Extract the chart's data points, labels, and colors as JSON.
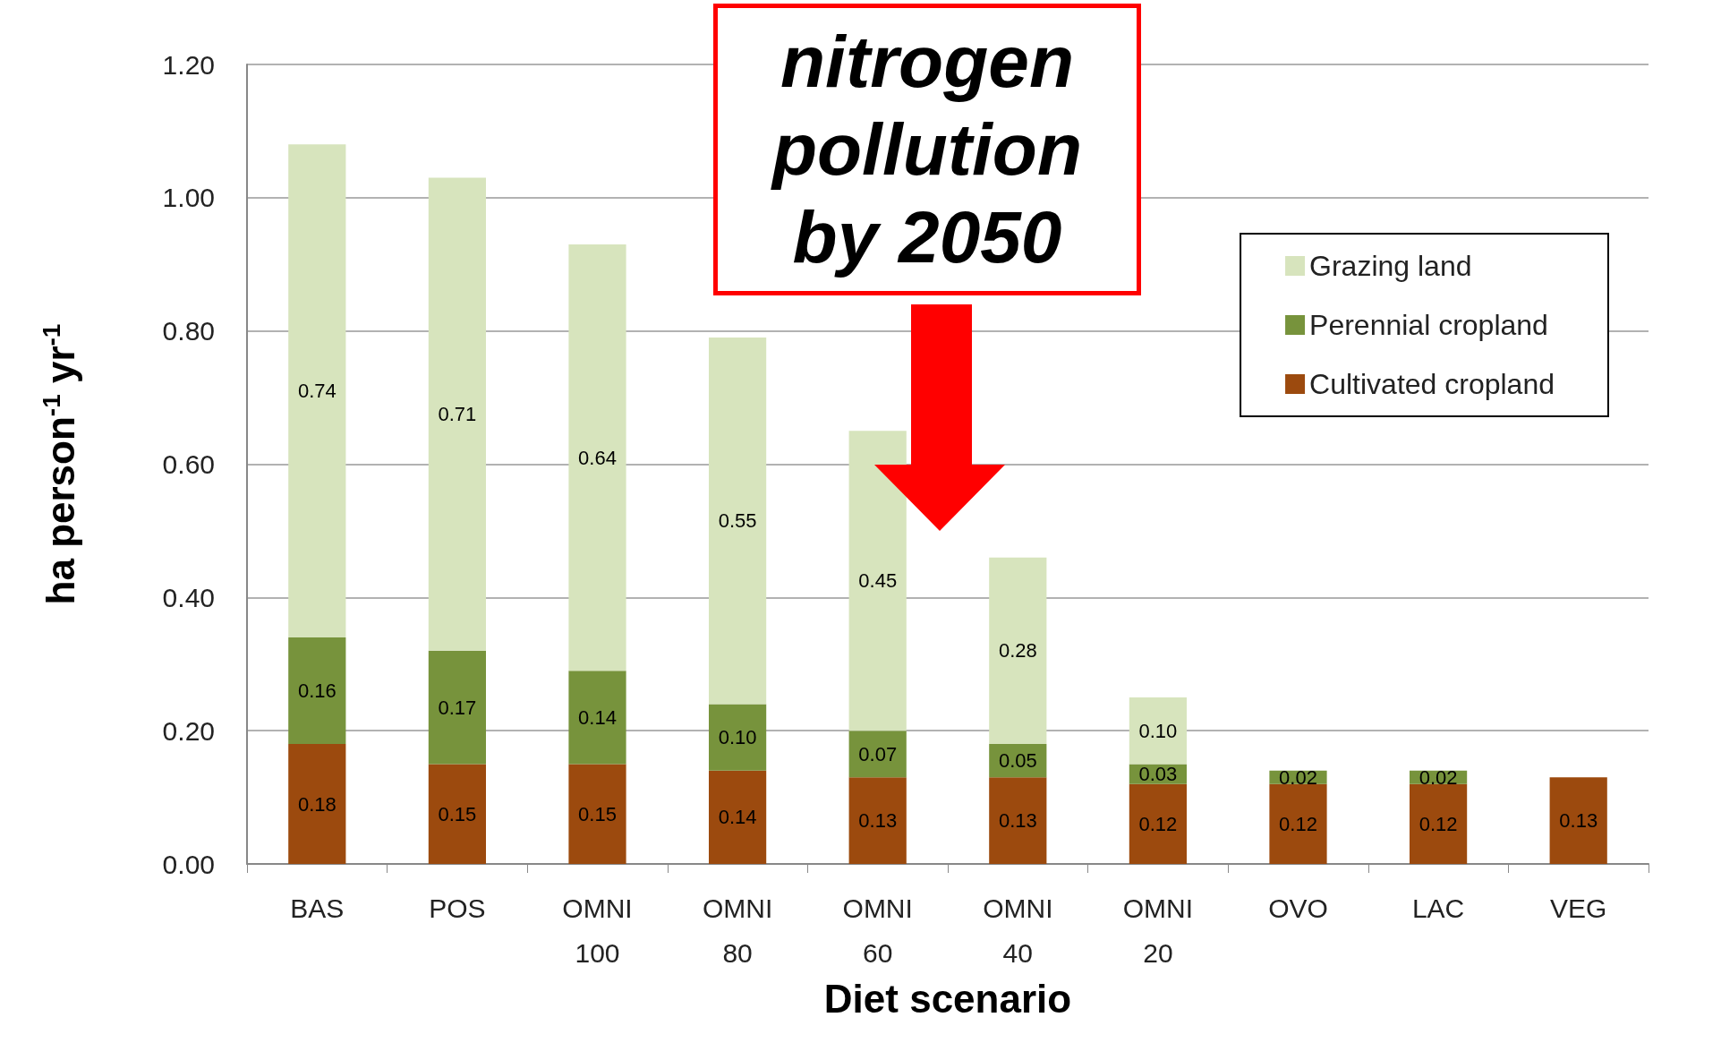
{
  "chart_data": {
    "type": "bar",
    "stacked": true,
    "xlabel": "Diet scenario",
    "ylabel": "ha person$^{-1}$ yr$^{-1}$",
    "categories": [
      "BAS",
      "POS",
      "OMNI 100",
      "OMNI 80",
      "OMNI 60",
      "OMNI 40",
      "OMNI 20",
      "OVO",
      "LAC",
      "VEG"
    ],
    "series": [
      {
        "name": "Cultivated cropland",
        "color": "#9c4a0e",
        "values": [
          0.18,
          0.15,
          0.15,
          0.14,
          0.13,
          0.13,
          0.12,
          0.12,
          0.12,
          0.13
        ],
        "value_labels": [
          "0.18",
          "0.15",
          "0.15",
          "0.14",
          "0.13",
          "0.13",
          "0.12",
          "0.12",
          "0.12",
          "0.13"
        ]
      },
      {
        "name": "Perennial cropland",
        "color": "#77933c",
        "values": [
          0.16,
          0.17,
          0.14,
          0.1,
          0.07,
          0.05,
          0.03,
          0.02,
          0.02,
          null
        ],
        "value_labels": [
          "0.16",
          "0.17",
          "0.14",
          "0.10",
          "0.07",
          "0.05",
          "0.03",
          "0.02",
          "0.02",
          null
        ]
      },
      {
        "name": "Grazing land",
        "color": "#d7e4bd",
        "values": [
          0.74,
          0.71,
          0.64,
          0.55,
          0.45,
          0.28,
          0.1,
          null,
          null,
          null
        ],
        "value_labels": [
          "0.74",
          "0.71",
          "0.64",
          "0.55",
          "0.45",
          "0.28",
          "0.10",
          null,
          null,
          null
        ]
      }
    ],
    "ylim": [
      0,
      1.2
    ],
    "yticks": [
      {
        "value": 0,
        "label": "0.00"
      },
      {
        "value": 0.2,
        "label": "0.20"
      },
      {
        "value": 0.4,
        "label": "0.40"
      },
      {
        "value": 0.6,
        "label": "0.60"
      },
      {
        "value": 0.8,
        "label": "0.80"
      },
      {
        "value": 1.0,
        "label": "1.00"
      },
      {
        "value": 1.2,
        "label": "1.20"
      }
    ],
    "grid": "y",
    "legend": "top right",
    "annotations": [
      "nitrogen pollution by 2050"
    ]
  }
}
